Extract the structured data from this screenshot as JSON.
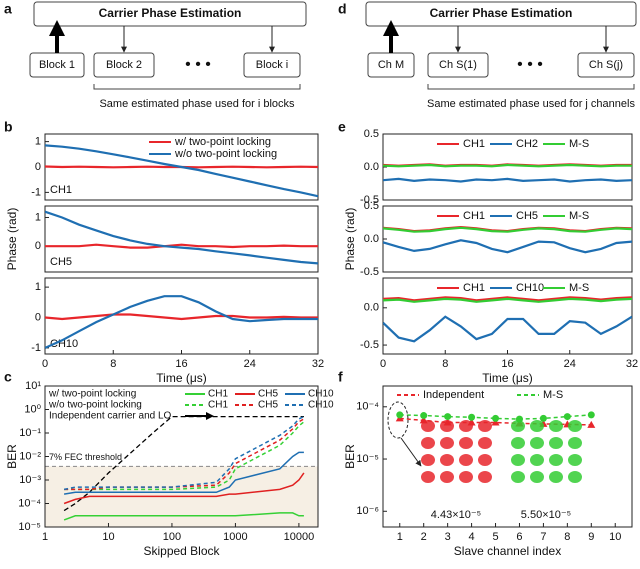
{
  "panel_labels": [
    "a",
    "b",
    "c",
    "d",
    "e",
    "f"
  ],
  "diagram_a": {
    "header": "Carrier Phase Estimation",
    "blocks": [
      "Block 1",
      "Block 2",
      "Block i"
    ],
    "ellipsis": "• • •",
    "caption": "Same estimated phase used for i blocks"
  },
  "diagram_d": {
    "header": "Carrier Phase Estimation",
    "blocks": [
      "Ch M",
      "Ch S(1)",
      "Ch S(j)"
    ],
    "ellipsis": "• • •",
    "caption": "Same estimated phase used for j channels"
  },
  "chart_data": [
    {
      "type": "line",
      "annotation": "CH1",
      "x": [
        0,
        2,
        4,
        6,
        8,
        10,
        12,
        14,
        16,
        18,
        20,
        22,
        24,
        26,
        28,
        30,
        32
      ],
      "xlim": [
        0,
        32
      ],
      "ylim": [
        -1.3,
        1.3
      ],
      "yticks": [
        -1,
        0,
        1
      ],
      "legend": "top",
      "series": [
        {
          "name": "w/ two-point locking",
          "color": "#e8262b",
          "values": [
            0.02,
            0,
            0.01,
            0,
            -0.01,
            0,
            0.01,
            0,
            0,
            -0.01,
            0,
            0.01,
            0,
            -0.01,
            0,
            0.01,
            0
          ]
        },
        {
          "name": "w/o two-point locking",
          "color": "#1f6fb2",
          "values": [
            0.85,
            0.8,
            0.72,
            0.62,
            0.5,
            0.38,
            0.25,
            0.12,
            0,
            -0.12,
            -0.27,
            -0.42,
            -0.57,
            -0.72,
            -0.87,
            -1,
            -1.15
          ]
        }
      ]
    },
    {
      "type": "line",
      "annotation": "CH5",
      "ylabel": "Phase (rad)",
      "x": [
        0,
        2,
        4,
        6,
        8,
        10,
        12,
        14,
        16,
        18,
        20,
        22,
        24,
        26,
        28,
        30,
        32
      ],
      "xlim": [
        0,
        32
      ],
      "ylim": [
        -0.9,
        1.4
      ],
      "yticks": [
        0,
        1
      ],
      "series": [
        {
          "color": "#e8262b",
          "values": [
            0,
            0,
            0,
            0.05,
            0,
            -0.05,
            -0.05,
            0,
            0.05,
            0,
            0,
            -0.03,
            0,
            0,
            0.02,
            0,
            0
          ]
        },
        {
          "color": "#1f6fb2",
          "values": [
            1.2,
            1,
            0.75,
            0.55,
            0.35,
            0.2,
            0.08,
            0,
            -0.05,
            -0.1,
            -0.18,
            -0.25,
            -0.32,
            -0.4,
            -0.48,
            -0.55,
            -0.6
          ]
        }
      ]
    },
    {
      "type": "line",
      "annotation": "CH10",
      "xlabel": "Time (μs)",
      "x": [
        0,
        2,
        4,
        6,
        8,
        10,
        12,
        14,
        16,
        18,
        20,
        22,
        24,
        26,
        28,
        30,
        32
      ],
      "xlim": [
        0,
        32
      ],
      "xticks": [
        0,
        8,
        16,
        24,
        32
      ],
      "ylim": [
        -1.2,
        1.3
      ],
      "yticks": [
        -1,
        0,
        1
      ],
      "series": [
        {
          "color": "#e8262b",
          "values": [
            0,
            -0.05,
            0,
            0.05,
            0.1,
            0.1,
            0.05,
            0,
            -0.05,
            0,
            0.05,
            0.05,
            0,
            0,
            0.02,
            0,
            0
          ]
        },
        {
          "color": "#1f6fb2",
          "values": [
            -1,
            -0.75,
            -0.45,
            -0.15,
            0.1,
            0.35,
            0.55,
            0.7,
            0.7,
            0.5,
            0.2,
            -0.05,
            -0.12,
            -0.08,
            -0.05,
            -0.05,
            -0.05
          ]
        }
      ]
    },
    {
      "type": "line",
      "x": [
        0,
        2,
        4,
        6,
        8,
        10,
        12,
        14,
        16,
        18,
        20,
        22,
        24,
        26,
        28,
        30,
        32
      ],
      "xlim": [
        0,
        32
      ],
      "ylim": [
        -0.5,
        0.5
      ],
      "yticks": [
        -0.5,
        {
          "value": 0,
          "label": "0.0"
        },
        0.5
      ],
      "legend": "row",
      "series": [
        {
          "name": "CH1",
          "color": "#e8262b",
          "values": [
            0.03,
            0.02,
            0.03,
            0.04,
            0.02,
            0.03,
            0.03,
            0.02,
            0.04,
            0.03,
            0.02,
            0.03,
            0.04,
            0.03,
            0.02,
            0.03,
            0.03
          ]
        },
        {
          "name": "CH2",
          "color": "#1f6fb2",
          "values": [
            -0.2,
            -0.18,
            -0.21,
            -0.19,
            -0.2,
            -0.22,
            -0.19,
            -0.2,
            -0.18,
            -0.21,
            -0.2,
            -0.19,
            -0.22,
            -0.2,
            -0.19,
            -0.21,
            -0.2
          ]
        },
        {
          "name": "M-S",
          "color": "#33cc33",
          "values": [
            0.02,
            0.01,
            0.02,
            0.03,
            0.01,
            0.02,
            0.02,
            0.01,
            0.03,
            0.02,
            0.01,
            0.02,
            0.03,
            0.02,
            0.01,
            0.02,
            0.02
          ]
        }
      ]
    },
    {
      "type": "line",
      "ylabel": "Phase (rad)",
      "x": [
        0,
        2,
        4,
        6,
        8,
        10,
        12,
        14,
        16,
        18,
        20,
        22,
        24,
        26,
        28,
        30,
        32
      ],
      "xlim": [
        0,
        32
      ],
      "ylim": [
        -0.5,
        0.5
      ],
      "yticks": [
        -0.5,
        {
          "value": 0,
          "label": "0.0"
        },
        0.5
      ],
      "legend": "row",
      "series": [
        {
          "name": "CH1",
          "color": "#e8262b",
          "values": [
            0.17,
            0.15,
            0.12,
            0.13,
            0.16,
            0.18,
            0.16,
            0.13,
            0.12,
            0.15,
            0.17,
            0.16,
            0.13,
            0.12,
            0.15,
            0.17,
            0.16
          ]
        },
        {
          "name": "CH5",
          "color": "#1f6fb2",
          "values": [
            -0.05,
            -0.12,
            -0.18,
            -0.15,
            -0.08,
            -0.02,
            -0.06,
            -0.15,
            -0.2,
            -0.12,
            -0.04,
            -0.05,
            -0.14,
            -0.2,
            -0.15,
            -0.06,
            -0.04
          ]
        },
        {
          "name": "M-S",
          "color": "#33cc33",
          "values": [
            0.16,
            0.14,
            0.11,
            0.12,
            0.15,
            0.17,
            0.15,
            0.12,
            0.11,
            0.14,
            0.16,
            0.15,
            0.12,
            0.11,
            0.14,
            0.16,
            0.15
          ]
        }
      ]
    },
    {
      "type": "line",
      "xlabel": "Time (μs)",
      "x": [
        0,
        2,
        4,
        6,
        8,
        10,
        12,
        14,
        16,
        18,
        20,
        22,
        24,
        26,
        28,
        30,
        32
      ],
      "xlim": [
        0,
        32
      ],
      "xticks": [
        0,
        8,
        16,
        24,
        32
      ],
      "ylim": [
        -0.62,
        0.4
      ],
      "yticks": [
        -0.5,
        {
          "value": 0,
          "label": "0.0"
        }
      ],
      "legend": "row",
      "series": [
        {
          "name": "CH1",
          "color": "#e8262b",
          "values": [
            0.12,
            0.13,
            0.1,
            0.12,
            0.14,
            0.13,
            0.1,
            0.12,
            0.14,
            0.12,
            0.1,
            0.12,
            0.14,
            0.13,
            0.11,
            0.13,
            0.14
          ]
        },
        {
          "name": "CH10",
          "color": "#1f6fb2",
          "values": [
            -0.2,
            -0.4,
            -0.45,
            -0.3,
            -0.12,
            -0.25,
            -0.42,
            -0.35,
            -0.15,
            -0.15,
            -0.35,
            -0.35,
            -0.18,
            -0.2,
            -0.35,
            -0.25,
            -0.12
          ]
        },
        {
          "name": "M-S",
          "color": "#33cc33",
          "values": [
            0.1,
            0.11,
            0.08,
            0.1,
            0.12,
            0.11,
            0.08,
            0.1,
            0.12,
            0.1,
            0.08,
            0.1,
            0.12,
            0.11,
            0.09,
            0.11,
            0.12
          ]
        }
      ]
    },
    {
      "type": "line",
      "xlabel": "Skipped Block",
      "ylabel": "BER",
      "xscale": "log",
      "yscale": "log",
      "x": [
        2,
        3,
        5,
        10,
        50,
        100,
        500,
        800,
        1000,
        5000,
        8000,
        10000,
        12000
      ],
      "xlim": [
        1,
        20000
      ],
      "xticks": [
        1,
        10,
        100,
        1000,
        10000
      ],
      "ylim": [
        1e-05,
        10
      ],
      "yticks": [
        {
          "value": 1e-05,
          "label": "10⁻⁵"
        },
        {
          "value": 0.0001,
          "label": "10⁻⁴"
        },
        {
          "value": 0.001,
          "label": "10⁻³"
        },
        {
          "value": 0.01,
          "label": "10⁻²"
        },
        {
          "value": 0.1,
          "label": "10⁻¹"
        },
        {
          "value": 1,
          "label": "10⁰"
        },
        {
          "value": 10,
          "label": "10¹"
        }
      ],
      "threshold": 0.0038,
      "threshold_label": "7% FEC threshold",
      "shade_color": "#f6efe4",
      "legend_groups": [
        {
          "label": "w/ two-point locking",
          "linestyle": "solid"
        },
        {
          "label": "w/o two-point locking",
          "linestyle": "dashed"
        }
      ],
      "series": [
        {
          "name": "CH1",
          "color": "#35d035",
          "linestyle": "solid",
          "values": [
            2e-05,
            3e-05,
            3e-05,
            3e-05,
            3e-05,
            3e-05,
            3e-05,
            3e-05,
            3e-05,
            4e-05,
            4e-05,
            3e-05,
            3e-05
          ]
        },
        {
          "name": "CH5",
          "color": "#e02020",
          "linestyle": "solid",
          "values": [
            0.0001,
            0.00015,
            0.0002,
            0.0002,
            0.0002,
            0.0002,
            0.0002,
            0.00025,
            0.00025,
            0.0004,
            0.0006,
            0.001,
            0.002
          ]
        },
        {
          "name": "CH10",
          "color": "#1f6fb2",
          "linestyle": "solid",
          "values": [
            0.00025,
            0.0003,
            0.0003,
            0.0003,
            0.0003,
            0.0003,
            0.0003,
            0.0005,
            0.001,
            0.003,
            0.01,
            0.015,
            0.015
          ]
        },
        {
          "name": "CH1",
          "color": "#35d035",
          "linestyle": "dashed",
          "values": [
            0.0004,
            0.0004,
            0.0004,
            0.0004,
            0.0004,
            0.0004,
            0.0005,
            0.001,
            0.003,
            0.03,
            0.1,
            0.2,
            0.3
          ]
        },
        {
          "name": "CH5",
          "color": "#e02020",
          "linestyle": "dashed",
          "values": [
            0.0004,
            0.0004,
            0.0004,
            0.0005,
            0.0005,
            0.0005,
            0.0006,
            0.002,
            0.005,
            0.05,
            0.15,
            0.3,
            0.4
          ]
        },
        {
          "name": "CH10",
          "color": "#1f6fb2",
          "linestyle": "dashed",
          "values": [
            0.0004,
            0.0005,
            0.0005,
            0.0005,
            0.0005,
            0.0005,
            0.0008,
            0.003,
            0.008,
            0.08,
            0.2,
            0.4,
            0.5
          ]
        }
      ],
      "reference": {
        "name": "Independent carrier and LO",
        "color": "#000000",
        "x": [
          2,
          3,
          5,
          10,
          50,
          100,
          500,
          1000,
          10000,
          12000
        ],
        "values": [
          5e-05,
          0.0001,
          0.0003,
          0.002,
          0.1,
          0.5,
          0.5,
          0.5,
          0.5,
          0.5
        ]
      }
    },
    {
      "type": "line",
      "xlabel": "Slave channel index",
      "ylabel": "BER",
      "yscale": "log",
      "legend": "top",
      "x": [
        1,
        2,
        3,
        4,
        5,
        6,
        7,
        8,
        9
      ],
      "xlim": [
        0.3,
        10.7
      ],
      "xticks": [
        1,
        2,
        3,
        4,
        5,
        6,
        7,
        8,
        9,
        10
      ],
      "ylim": [
        5e-07,
        0.00025
      ],
      "yticks": [
        {
          "value": 1e-06,
          "label": "10⁻⁶"
        },
        {
          "value": 1e-05,
          "label": "10⁻⁵"
        },
        {
          "value": 0.0001,
          "label": "10⁻⁴"
        }
      ],
      "annotations": [
        "4.43×10⁻⁵",
        "5.50×10⁻⁵"
      ],
      "series": [
        {
          "name": "Independent",
          "color": "#e8262b",
          "marker": "triangle",
          "values": [
            6e-05,
            5.5e-05,
            5e-05,
            5e-05,
            5e-05,
            4.8e-05,
            4.7e-05,
            4.6e-05,
            4.5e-05
          ]
        },
        {
          "name": "M-S",
          "color": "#33cc33",
          "marker": "circle",
          "values": [
            7e-05,
            6.8e-05,
            6.5e-05,
            6.3e-05,
            6e-05,
            5.8e-05,
            6e-05,
            6.5e-05,
            7e-05
          ]
        }
      ]
    }
  ]
}
